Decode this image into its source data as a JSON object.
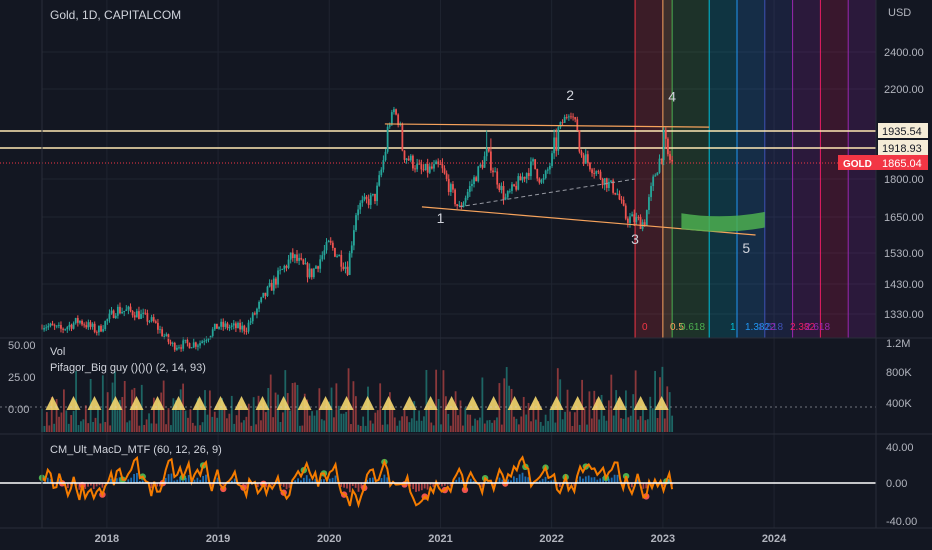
{
  "header": {
    "title": "Gold, 1D, CAPITALCOM"
  },
  "colors": {
    "bg": "#131722",
    "grid": "#1f2430",
    "text": "#b2b5be",
    "up": "#26a69a",
    "down": "#ef5350",
    "price_line": "#f23645",
    "support": "#ffe8b3",
    "trend": "#f7a35c",
    "zero": "#ffffff"
  },
  "chart_data": [
    {
      "type": "candlestick",
      "title": "Gold, 1D, CAPITALCOM",
      "y_unit": "USD",
      "ylim": [
        1250,
        2600
      ],
      "x_range": [
        "2017-06",
        "2024-12"
      ],
      "x_ticks": [
        "2018",
        "2019",
        "2020",
        "2021",
        "2022",
        "2023",
        "2024"
      ],
      "y_ticks": [
        "2400.00",
        "2200.00",
        "1800.00",
        "1650.00",
        "1530.00",
        "1430.00",
        "1330.00"
      ],
      "price_labels": [
        {
          "label": "1935.54",
          "value": 1935.54
        },
        {
          "label": "1918.93",
          "value": 1918.93
        },
        {
          "label": "1865.04",
          "value": 1865.04,
          "tag": "GOLD"
        }
      ],
      "price_path": [
        {
          "x": "2017-06",
          "y": 1290
        },
        {
          "x": "2017-08",
          "y": 1270
        },
        {
          "x": "2017-10",
          "y": 1305
        },
        {
          "x": "2017-12",
          "y": 1265
        },
        {
          "x": "2018-02",
          "y": 1345
        },
        {
          "x": "2018-04",
          "y": 1335
        },
        {
          "x": "2018-06",
          "y": 1300
        },
        {
          "x": "2018-08",
          "y": 1210
        },
        {
          "x": "2018-11",
          "y": 1220
        },
        {
          "x": "2019-01",
          "y": 1285
        },
        {
          "x": "2019-04",
          "y": 1275
        },
        {
          "x": "2019-06",
          "y": 1390
        },
        {
          "x": "2019-09",
          "y": 1520
        },
        {
          "x": "2019-11",
          "y": 1460
        },
        {
          "x": "2020-01",
          "y": 1560
        },
        {
          "x": "2020-03",
          "y": 1480
        },
        {
          "x": "2020-04",
          "y": 1690
        },
        {
          "x": "2020-06",
          "y": 1730
        },
        {
          "x": "2020-08",
          "y": 2070
        },
        {
          "x": "2020-09",
          "y": 1900
        },
        {
          "x": "2020-11",
          "y": 1830
        },
        {
          "x": "2021-01",
          "y": 1850
        },
        {
          "x": "2021-03",
          "y": 1680
        },
        {
          "x": "2021-06",
          "y": 1900
        },
        {
          "x": "2021-08",
          "y": 1720
        },
        {
          "x": "2021-11",
          "y": 1860
        },
        {
          "x": "2021-12",
          "y": 1780
        },
        {
          "x": "2022-03",
          "y": 2070
        },
        {
          "x": "2022-04",
          "y": 1910
        },
        {
          "x": "2022-06",
          "y": 1820
        },
        {
          "x": "2022-08",
          "y": 1750
        },
        {
          "x": "2022-09",
          "y": 1650
        },
        {
          "x": "2022-11",
          "y": 1630
        },
        {
          "x": "2022-12",
          "y": 1800
        },
        {
          "x": "2023-01",
          "y": 1920
        },
        {
          "x": "2023-02",
          "y": 1865
        }
      ],
      "lines": [
        {
          "from": {
            "x": "2020-07",
            "y": 1980
          },
          "to": {
            "x": "2023-06",
            "y": 1960
          },
          "color": "#f7a35c"
        },
        {
          "from": {
            "x": "2020-11",
            "y": 1690
          },
          "to": {
            "x": "2023-11",
            "y": 1590
          },
          "color": "#f7a35c"
        }
      ],
      "wave_labels": [
        {
          "label": "1",
          "x": "2021-01",
          "y": 1630
        },
        {
          "label": "2",
          "x": "2022-03",
          "y": 2130
        },
        {
          "label": "3",
          "x": "2022-10",
          "y": 1560
        },
        {
          "label": "4",
          "x": "2023-02",
          "y": 2120
        },
        {
          "label": "5",
          "x": "2023-10",
          "y": 1530
        }
      ],
      "fib_time_zones": [
        {
          "label": "0",
          "x": "2022-10",
          "color": "#f23645"
        },
        {
          "label": "0.5",
          "x": "2023-01",
          "color": "#f7a35c"
        },
        {
          "label": "0.618",
          "x": "2023-02",
          "color": "#4caf50"
        },
        {
          "label": "1",
          "x": "2023-06",
          "color": "#00bcd4"
        },
        {
          "label": "1.382",
          "x": "2023-09",
          "color": "#2196f3"
        },
        {
          "label": "1.618",
          "x": "2023-12",
          "color": "#3f51b5"
        },
        {
          "label": "2",
          "x": "2024-03",
          "color": "#9c27b0"
        },
        {
          "label": "2.382",
          "x": "2024-06",
          "color": "#e91e63"
        },
        {
          "label": "2.618",
          "x": "2024-09",
          "color": "#9c27b0"
        }
      ]
    },
    {
      "type": "bar",
      "name": "Vol",
      "indicator_label": "Pifagor_Big guy ()()() (2, 14, 93)",
      "left_ticks": [
        "50.00",
        "25.00",
        "0.00"
      ],
      "right_ticks": [
        "1.2M",
        "800K",
        "400K"
      ]
    },
    {
      "type": "line",
      "name": "CM_Ult_MacD_MTF (60, 12, 26, 9)",
      "y_ticks": [
        "40.00",
        "0.00",
        "-40.00"
      ],
      "ylim": [
        -45,
        45
      ]
    }
  ]
}
